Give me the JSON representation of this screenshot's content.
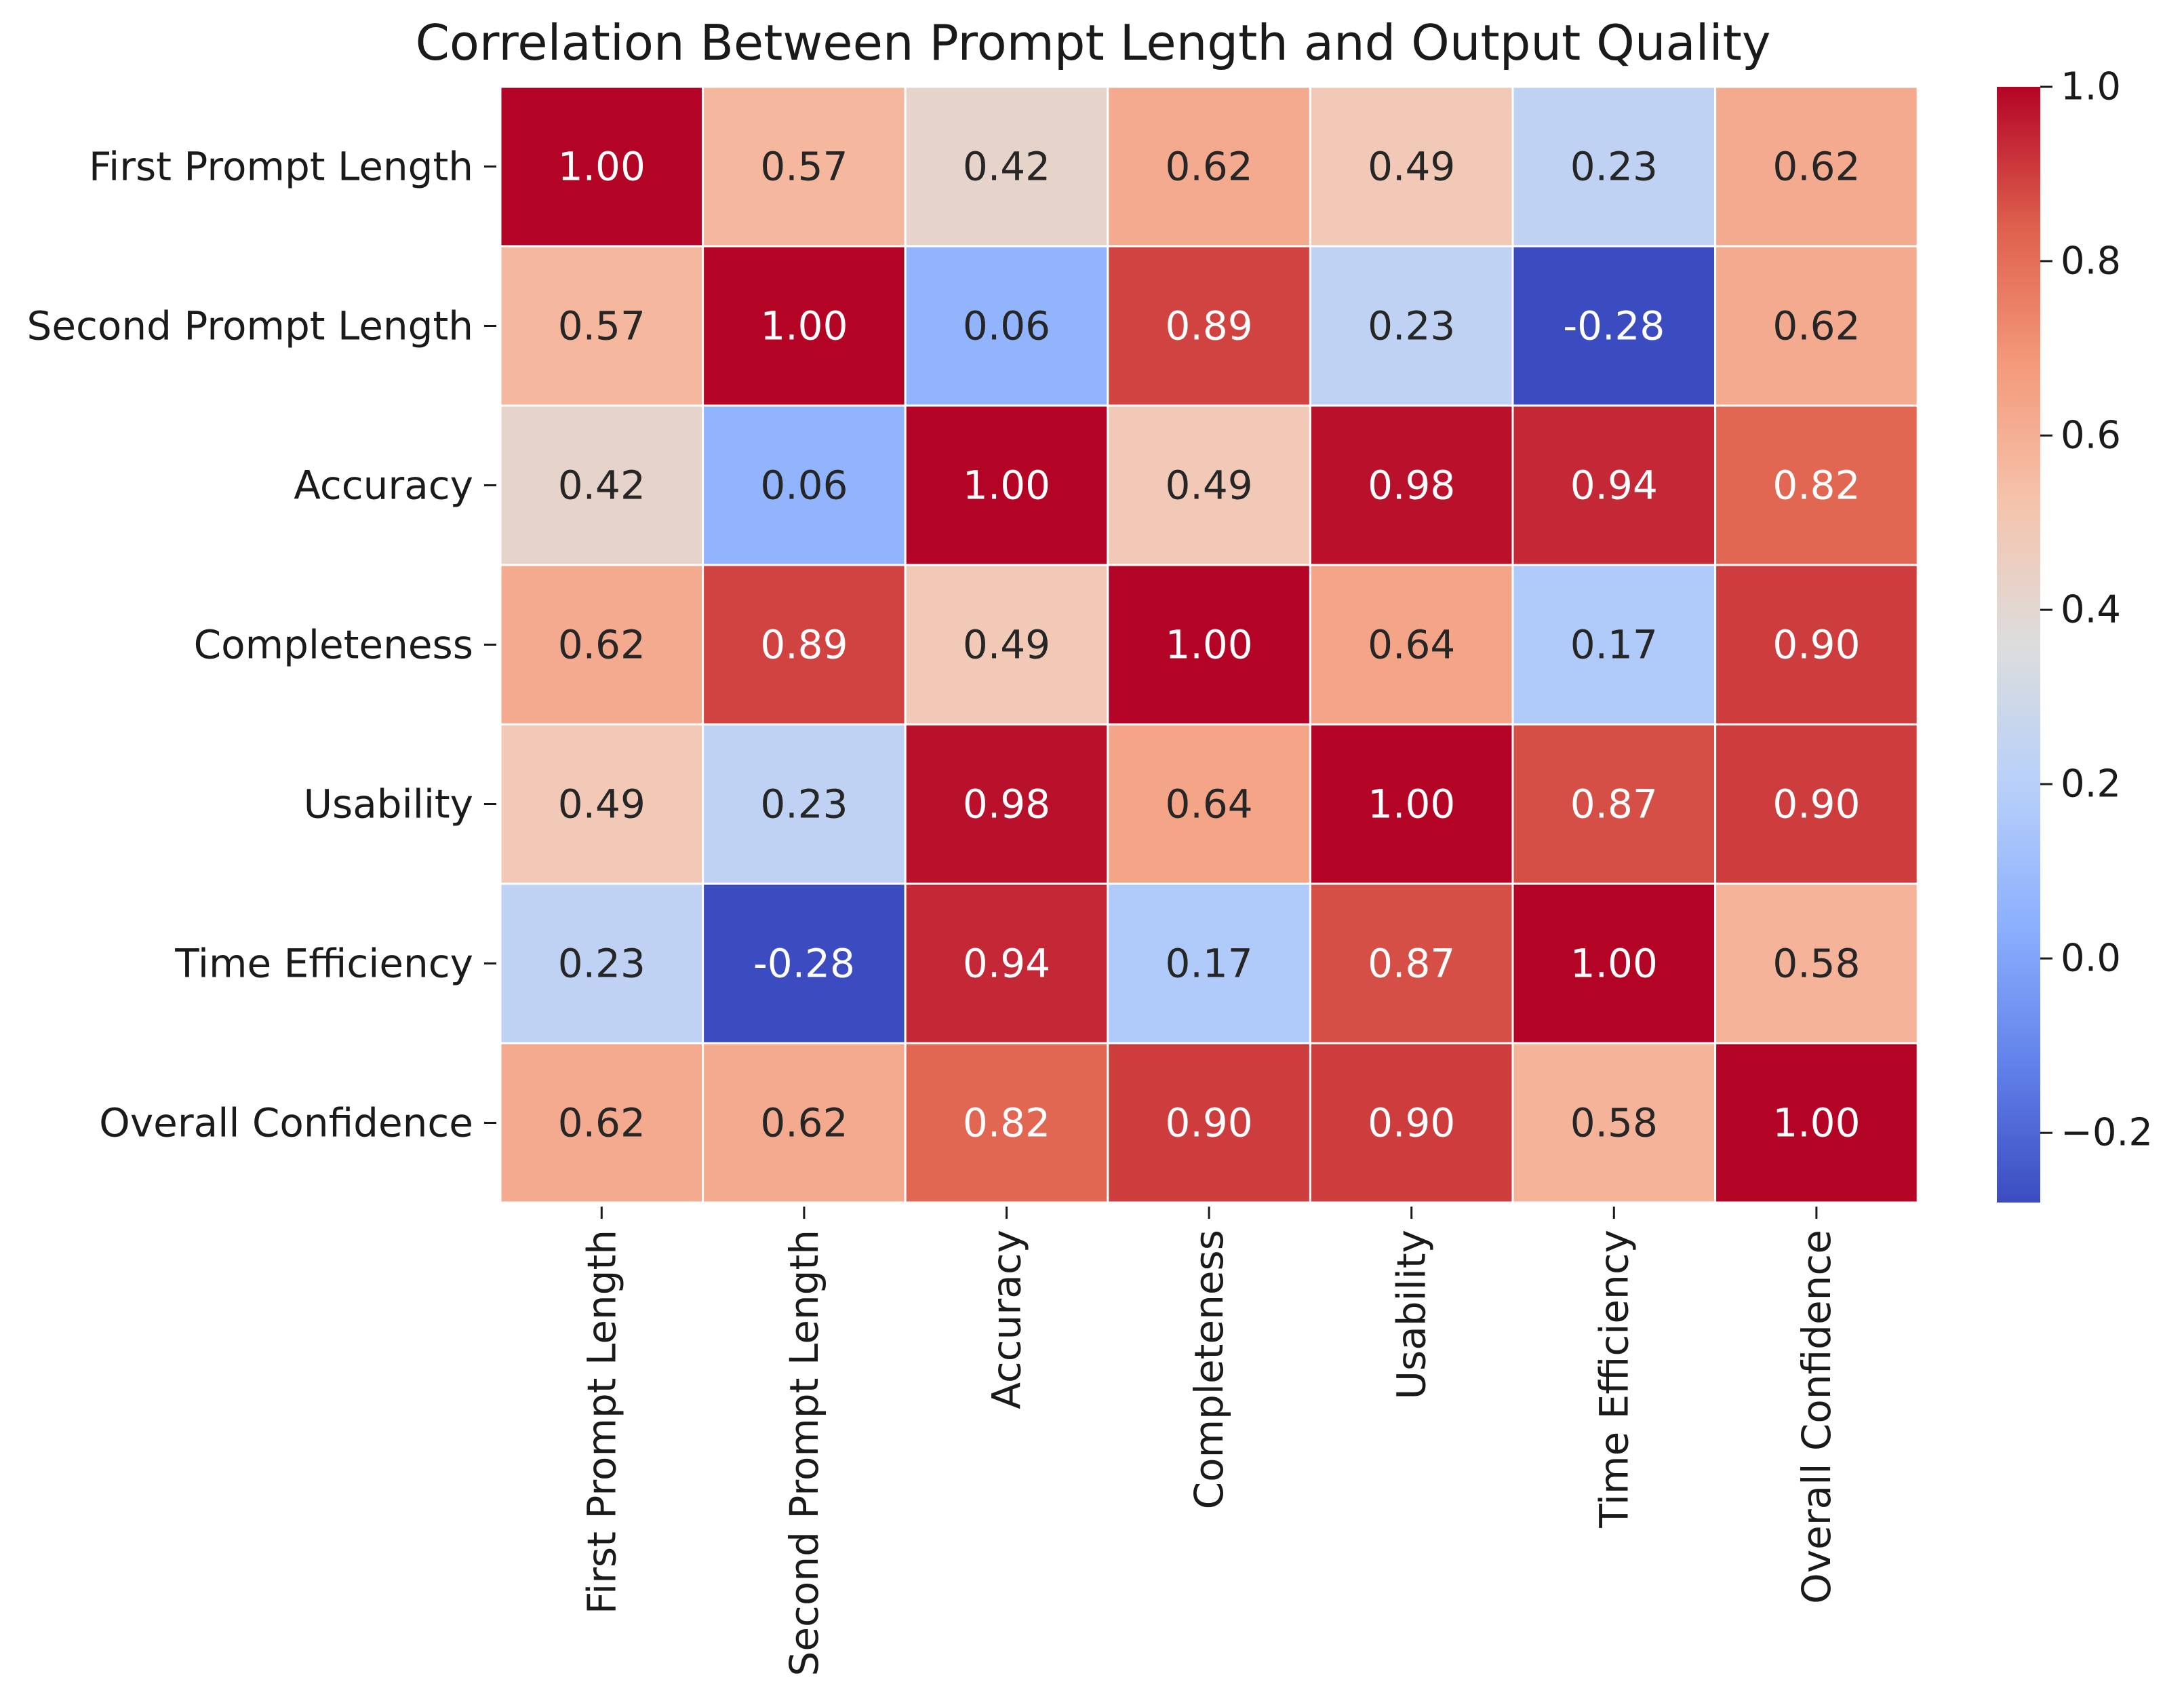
{
  "chart_data": {
    "type": "heatmap",
    "title": "Correlation Between Prompt Length and Output Quality",
    "row_labels": [
      "First Prompt Length",
      "Second Prompt Length",
      "Accuracy",
      "Completeness",
      "Usability",
      "Time Efficiency",
      "Overall Confidence"
    ],
    "col_labels": [
      "First Prompt Length",
      "Second Prompt Length",
      "Accuracy",
      "Completeness",
      "Usability",
      "Time Efficiency",
      "Overall Confidence"
    ],
    "matrix": [
      [
        1.0,
        0.57,
        0.42,
        0.62,
        0.49,
        0.23,
        0.62
      ],
      [
        0.57,
        1.0,
        0.06,
        0.89,
        0.23,
        -0.28,
        0.62
      ],
      [
        0.42,
        0.06,
        1.0,
        0.49,
        0.98,
        0.94,
        0.82
      ],
      [
        0.62,
        0.89,
        0.49,
        1.0,
        0.64,
        0.17,
        0.9
      ],
      [
        0.49,
        0.23,
        0.98,
        0.64,
        1.0,
        0.87,
        0.9
      ],
      [
        0.23,
        -0.28,
        0.94,
        0.17,
        0.87,
        1.0,
        0.58
      ],
      [
        0.62,
        0.62,
        0.82,
        0.9,
        0.9,
        0.58,
        1.0
      ]
    ],
    "value_format": "0.00",
    "colormap": "coolwarm",
    "vmin": -0.28,
    "vmax": 1.0,
    "colorbar": {
      "ticks": [
        -0.2,
        0.0,
        0.2,
        0.4,
        0.6,
        0.8,
        1.0
      ],
      "tick_labels": [
        "−0.2",
        "0.0",
        "0.2",
        "0.4",
        "0.6",
        "0.8",
        "1.0"
      ]
    },
    "xlabel": "",
    "ylabel": "",
    "legend": "colorbar-right"
  }
}
